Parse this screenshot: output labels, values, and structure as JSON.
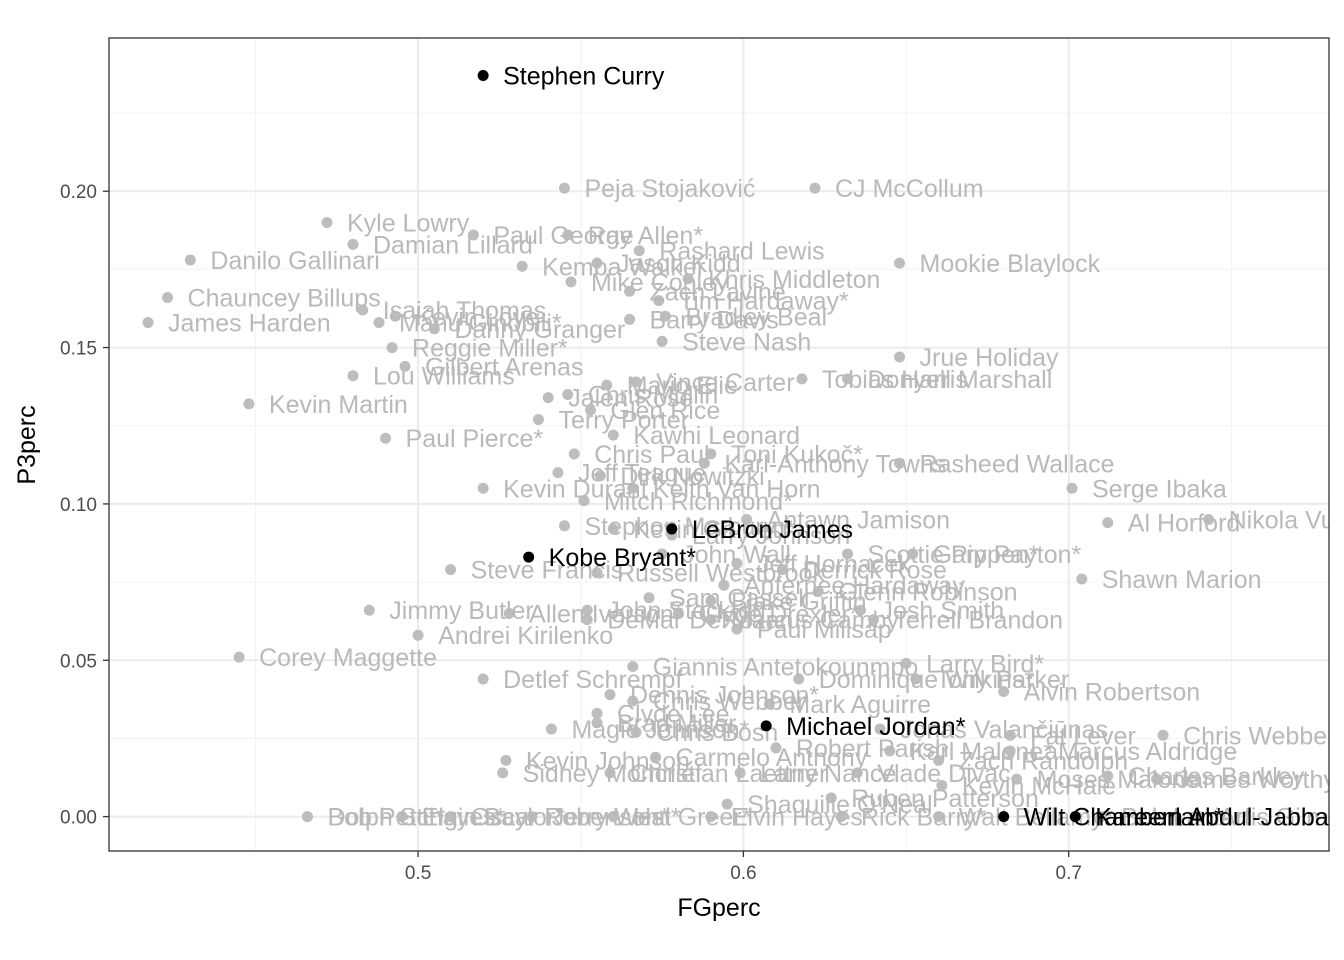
{
  "chart_data": {
    "type": "scatter",
    "xlabel": "FGperc",
    "ylabel": "P3perc",
    "xlim": [
      0.405,
      0.78
    ],
    "ylim": [
      -0.011,
      0.249
    ],
    "x_ticks": [
      0.5,
      0.6,
      0.7
    ],
    "x_tick_labels": [
      "0.5",
      "0.6",
      "0.7"
    ],
    "y_ticks": [
      0.0,
      0.05,
      0.1,
      0.15,
      0.2
    ],
    "y_tick_labels": [
      "0.00",
      "0.05",
      "0.10",
      "0.15",
      "0.20"
    ],
    "grid": true,
    "colors": {
      "highlight": "#000000",
      "muted_point": "#bdbdbd",
      "muted_label": "#b9b9b9",
      "grid": "#ebebeb",
      "panel_border": "#333333"
    },
    "highlighted": [
      {
        "name": "Stephen Curry",
        "x": 0.52,
        "y": 0.237
      },
      {
        "name": "LeBron James",
        "x": 0.578,
        "y": 0.092
      },
      {
        "name": "Kobe Bryant*",
        "x": 0.534,
        "y": 0.083
      },
      {
        "name": "Michael Jordan*",
        "x": 0.607,
        "y": 0.029
      },
      {
        "name": "Wilt Chamberlain*",
        "x": 0.68,
        "y": 0.0
      },
      {
        "name": "Kareem Abdul-Jabbar*",
        "x": 0.702,
        "y": 0.0
      }
    ],
    "others": [
      {
        "name": "Peja Stojaković",
        "x": 0.545,
        "y": 0.201
      },
      {
        "name": "CJ McCollum",
        "x": 0.622,
        "y": 0.201
      },
      {
        "name": "Kyle Lowry",
        "x": 0.472,
        "y": 0.19
      },
      {
        "name": "Ray Allen*",
        "x": 0.546,
        "y": 0.186
      },
      {
        "name": "Paul George",
        "x": 0.517,
        "y": 0.186
      },
      {
        "name": "Damian Lillard",
        "x": 0.48,
        "y": 0.183
      },
      {
        "name": "Rashard Lewis",
        "x": 0.568,
        "y": 0.181
      },
      {
        "name": "Danilo Gallinari",
        "x": 0.43,
        "y": 0.178
      },
      {
        "name": "Kemba Walker",
        "x": 0.532,
        "y": 0.176
      },
      {
        "name": "Jason Kidd",
        "x": 0.555,
        "y": 0.177
      },
      {
        "name": "Mookie Blaylock",
        "x": 0.648,
        "y": 0.177
      },
      {
        "name": "Khris Middleton",
        "x": 0.583,
        "y": 0.172
      },
      {
        "name": "Mike Conley",
        "x": 0.547,
        "y": 0.171
      },
      {
        "name": "Zach Lavine",
        "x": 0.565,
        "y": 0.168
      },
      {
        "name": "Chauncey Billups",
        "x": 0.423,
        "y": 0.166
      },
      {
        "name": "Tim Hardaway*",
        "x": 0.574,
        "y": 0.165
      },
      {
        "name": "Isaiah Thomas",
        "x": 0.483,
        "y": 0.162
      },
      {
        "name": "Kevin Love",
        "x": 0.493,
        "y": 0.16
      },
      {
        "name": "Bradley Beal",
        "x": 0.576,
        "y": 0.16
      },
      {
        "name": "Barry Davis",
        "x": 0.565,
        "y": 0.159
      },
      {
        "name": "James Harden",
        "x": 0.417,
        "y": 0.158
      },
      {
        "name": "Manu Ginóbili*",
        "x": 0.488,
        "y": 0.158
      },
      {
        "name": "Danny Granger",
        "x": 0.505,
        "y": 0.156
      },
      {
        "name": "Steve Nash",
        "x": 0.575,
        "y": 0.152
      },
      {
        "name": "Reggie Miller*",
        "x": 0.492,
        "y": 0.15
      },
      {
        "name": "Jrue Holiday",
        "x": 0.648,
        "y": 0.147
      },
      {
        "name": "Gilbert Arenas",
        "x": 0.496,
        "y": 0.144
      },
      {
        "name": "Lou Williams",
        "x": 0.48,
        "y": 0.141
      },
      {
        "name": "Vince Carter",
        "x": 0.567,
        "y": 0.139
      },
      {
        "name": "Mario Elie",
        "x": 0.558,
        "y": 0.138
      },
      {
        "name": "Tobias Harris",
        "x": 0.618,
        "y": 0.14
      },
      {
        "name": "Donyell Marshall",
        "x": 0.632,
        "y": 0.14
      },
      {
        "name": "Chris Mullin",
        "x": 0.546,
        "y": 0.135
      },
      {
        "name": "Jalen Rose",
        "x": 0.54,
        "y": 0.134
      },
      {
        "name": "Kevin Martin",
        "x": 0.448,
        "y": 0.132
      },
      {
        "name": "Glen Rice",
        "x": 0.553,
        "y": 0.13
      },
      {
        "name": "Terry Porter",
        "x": 0.537,
        "y": 0.127
      },
      {
        "name": "Paul Pierce*",
        "x": 0.49,
        "y": 0.121
      },
      {
        "name": "Kawhi Leonard",
        "x": 0.56,
        "y": 0.122
      },
      {
        "name": "Toni Kukoč*",
        "x": 0.59,
        "y": 0.116
      },
      {
        "name": "Chris Paul",
        "x": 0.548,
        "y": 0.116
      },
      {
        "name": "Karl-Anthony Towns",
        "x": 0.588,
        "y": 0.113
      },
      {
        "name": "Rasheed Wallace",
        "x": 0.648,
        "y": 0.113
      },
      {
        "name": "Jeff Teague",
        "x": 0.543,
        "y": 0.11
      },
      {
        "name": "Dirk Nowitzki",
        "x": 0.556,
        "y": 0.109
      },
      {
        "name": "Kevin Durant",
        "x": 0.52,
        "y": 0.105
      },
      {
        "name": "Keith Van Horn",
        "x": 0.566,
        "y": 0.105
      },
      {
        "name": "Serge Ibaka",
        "x": 0.701,
        "y": 0.105
      },
      {
        "name": "Mitch Richmond*",
        "x": 0.551,
        "y": 0.101
      },
      {
        "name": "Antawn Jamison",
        "x": 0.601,
        "y": 0.095
      },
      {
        "name": "Al Horford",
        "x": 0.712,
        "y": 0.094
      },
      {
        "name": "Nikola Vučević",
        "x": 0.743,
        "y": 0.095
      },
      {
        "name": "Stephon Marbury",
        "x": 0.545,
        "y": 0.093
      },
      {
        "name": "Kevin Garnett*",
        "x": 0.56,
        "y": 0.092
      },
      {
        "name": "Larry Johnson",
        "x": 0.578,
        "y": 0.09
      },
      {
        "name": "John Wall",
        "x": 0.575,
        "y": 0.084
      },
      {
        "name": "Scottie Pippen*",
        "x": 0.632,
        "y": 0.084
      },
      {
        "name": "Gary Payton*",
        "x": 0.652,
        "y": 0.084
      },
      {
        "name": "Jeff Hornacek",
        "x": 0.598,
        "y": 0.081
      },
      {
        "name": "Steve Francis",
        "x": 0.51,
        "y": 0.079
      },
      {
        "name": "Russell Westbrook",
        "x": 0.555,
        "y": 0.078
      },
      {
        "name": "Derrick Rose",
        "x": 0.612,
        "y": 0.079
      },
      {
        "name": "Shawn Marion",
        "x": 0.704,
        "y": 0.076
      },
      {
        "name": "Anfernee Hardaway",
        "x": 0.594,
        "y": 0.074
      },
      {
        "name": "Sam Cassell",
        "x": 0.571,
        "y": 0.07
      },
      {
        "name": "Glenn Robinson",
        "x": 0.623,
        "y": 0.072
      },
      {
        "name": "Blake Griffin",
        "x": 0.59,
        "y": 0.069
      },
      {
        "name": "Jimmy Butler",
        "x": 0.485,
        "y": 0.066
      },
      {
        "name": "Allen Iverson*",
        "x": 0.528,
        "y": 0.065
      },
      {
        "name": "John Stockton*",
        "x": 0.552,
        "y": 0.066
      },
      {
        "name": "Clyde Drexler*",
        "x": 0.58,
        "y": 0.065
      },
      {
        "name": "Josh Smith",
        "x": 0.636,
        "y": 0.066
      },
      {
        "name": "DeMar DeRozan",
        "x": 0.552,
        "y": 0.063
      },
      {
        "name": "Marcus Camby",
        "x": 0.59,
        "y": 0.063
      },
      {
        "name": "Terrell Brandon",
        "x": 0.64,
        "y": 0.063
      },
      {
        "name": "Paul Millsap",
        "x": 0.598,
        "y": 0.06
      },
      {
        "name": "Andrei Kirilenko",
        "x": 0.5,
        "y": 0.058
      },
      {
        "name": "Corey Maggette",
        "x": 0.445,
        "y": 0.051
      },
      {
        "name": "Larry Bird*",
        "x": 0.65,
        "y": 0.049
      },
      {
        "name": "Giannis Antetokounmpo",
        "x": 0.566,
        "y": 0.048
      },
      {
        "name": "Detlef Schrempf",
        "x": 0.52,
        "y": 0.044
      },
      {
        "name": "Dominique Wilkins*",
        "x": 0.617,
        "y": 0.044
      },
      {
        "name": "Tony Parker",
        "x": 0.653,
        "y": 0.044
      },
      {
        "name": "Alvin Robertson",
        "x": 0.68,
        "y": 0.04
      },
      {
        "name": "Dennis Johnson*",
        "x": 0.559,
        "y": 0.039
      },
      {
        "name": "Chris Webber",
        "x": 0.566,
        "y": 0.037
      },
      {
        "name": "Mark Aguirre",
        "x": 0.608,
        "y": 0.036
      },
      {
        "name": "Clyde Lee",
        "x": 0.555,
        "y": 0.033
      },
      {
        "name": "Brad Miller",
        "x": 0.555,
        "y": 0.03
      },
      {
        "name": "Magic Johnson*",
        "x": 0.541,
        "y": 0.028
      },
      {
        "name": "Chris Bosh",
        "x": 0.567,
        "y": 0.027
      },
      {
        "name": "Jonas Valančiūnas",
        "x": 0.642,
        "y": 0.028
      },
      {
        "name": "Fat Lever",
        "x": 0.682,
        "y": 0.026
      },
      {
        "name": "Chris Webber",
        "x": 0.729,
        "y": 0.026
      },
      {
        "name": "Robert Parish",
        "x": 0.61,
        "y": 0.022
      },
      {
        "name": "Karl Malone*",
        "x": 0.645,
        "y": 0.021
      },
      {
        "name": "LaMarcus Aldridge",
        "x": 0.682,
        "y": 0.021
      },
      {
        "name": "Kevin Johnson",
        "x": 0.527,
        "y": 0.018
      },
      {
        "name": "Carmelo Anthony",
        "x": 0.573,
        "y": 0.019
      },
      {
        "name": "Zach Randolph",
        "x": 0.66,
        "y": 0.018
      },
      {
        "name": "Sidney Moncrief",
        "x": 0.526,
        "y": 0.014
      },
      {
        "name": "Christian Laettner",
        "x": 0.559,
        "y": 0.014
      },
      {
        "name": "Larry Nance",
        "x": 0.599,
        "y": 0.014
      },
      {
        "name": "Vlade Divac",
        "x": 0.635,
        "y": 0.014
      },
      {
        "name": "Moses Malone",
        "x": 0.684,
        "y": 0.012
      },
      {
        "name": "Charles Barkley",
        "x": 0.712,
        "y": 0.013
      },
      {
        "name": "James Worthy",
        "x": 0.727,
        "y": 0.012
      },
      {
        "name": "Kevin McHale",
        "x": 0.661,
        "y": 0.01
      },
      {
        "name": "Ruben Patterson",
        "x": 0.627,
        "y": 0.006
      },
      {
        "name": "Shaquille O'Neal",
        "x": 0.595,
        "y": 0.004
      },
      {
        "name": "Dolph Schayes*",
        "x": 0.466,
        "y": 0.0
      },
      {
        "name": "Bob Pettit*",
        "x": 0.466,
        "y": 0.0
      },
      {
        "name": "Elgin Baylor*",
        "x": 0.495,
        "y": 0.0
      },
      {
        "name": "Oscar Robertson*",
        "x": 0.51,
        "y": 0.0
      },
      {
        "name": "Jerry West*",
        "x": 0.535,
        "y": 0.0
      },
      {
        "name": "Hal Greer*",
        "x": 0.56,
        "y": 0.0
      },
      {
        "name": "Elvin Hayes*",
        "x": 0.59,
        "y": 0.0
      },
      {
        "name": "Rick Barry*",
        "x": 0.63,
        "y": 0.0
      },
      {
        "name": "Walt Bellamy*",
        "x": 0.66,
        "y": 0.0
      },
      {
        "name": "Bob Lanier*",
        "x": 0.71,
        "y": 0.0
      },
      {
        "name": "Artis Gilmore*",
        "x": 0.74,
        "y": 0.0
      }
    ]
  }
}
